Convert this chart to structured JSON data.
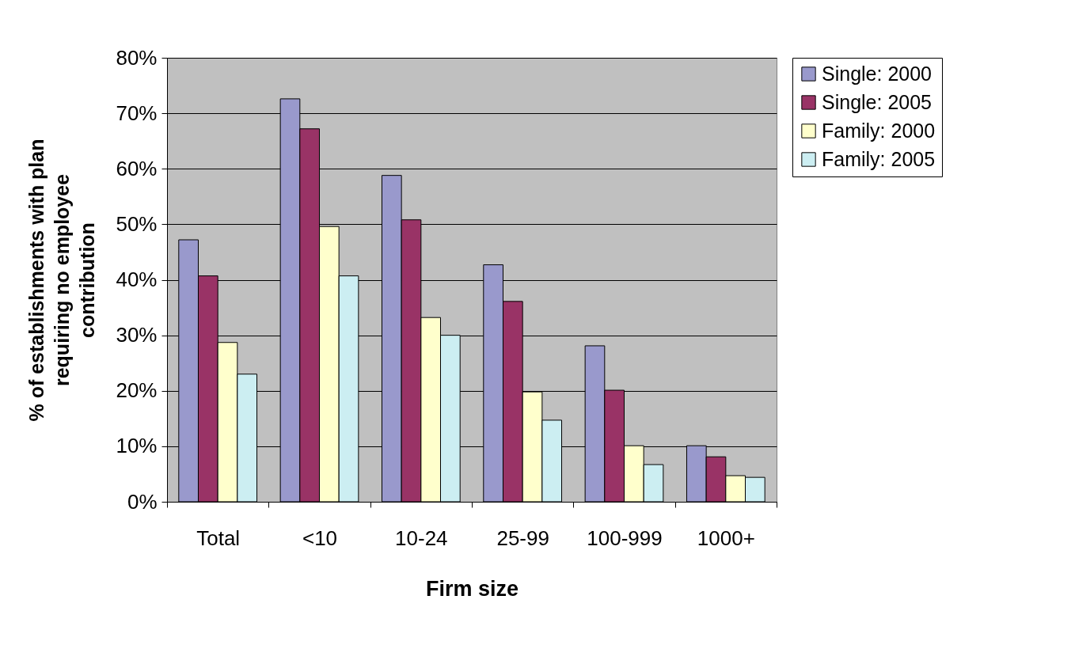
{
  "chart_data": {
    "type": "bar",
    "xlabel": "Firm size",
    "ylabel": "% of establishments with plan requiring no employee contribution",
    "categories": [
      "Total",
      "<10",
      "10-24",
      "25-99",
      "100-999",
      "1000+"
    ],
    "series": [
      {
        "name": "Single: 2000",
        "color": "#9999cc",
        "values": [
          47.2,
          72.6,
          58.8,
          42.7,
          28.1,
          10.1
        ]
      },
      {
        "name": "Single: 2005",
        "color": "#993366",
        "values": [
          40.7,
          67.2,
          50.8,
          36.1,
          20.1,
          8.1
        ]
      },
      {
        "name": "Family: 2000",
        "color": "#ffffcc",
        "values": [
          28.7,
          49.6,
          33.2,
          19.8,
          10.1,
          4.7
        ]
      },
      {
        "name": "Family: 2005",
        "color": "#cceef2",
        "values": [
          23.0,
          40.7,
          30.0,
          14.7,
          6.7,
          4.4
        ]
      }
    ],
    "ylim": [
      0,
      80
    ],
    "yticks": [
      {
        "value": 0,
        "label": "0%"
      },
      {
        "value": 10,
        "label": "10%"
      },
      {
        "value": 20,
        "label": "20%"
      },
      {
        "value": 30,
        "label": "30%"
      },
      {
        "value": 40,
        "label": "40%"
      },
      {
        "value": 50,
        "label": "50%"
      },
      {
        "value": 60,
        "label": "60%"
      },
      {
        "value": 70,
        "label": "70%"
      },
      {
        "value": 80,
        "label": "80%"
      }
    ],
    "grid": "y",
    "legend": "right"
  }
}
